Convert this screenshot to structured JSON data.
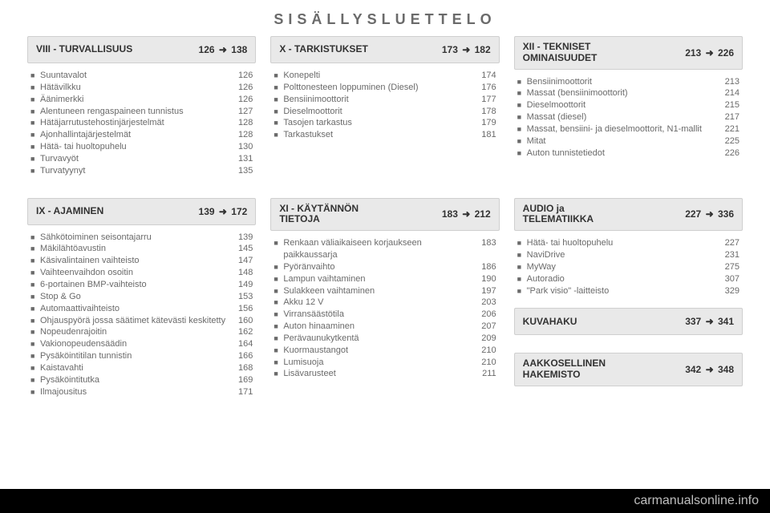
{
  "title": "SISÄLLYSLUETTELO",
  "footer": "carmanualsonline.info",
  "colors": {
    "page_bg": "#ffffff",
    "header_bg": "#e9e9e9",
    "header_border": "#cfcfcf",
    "header_text": "#323232",
    "body_text": "#6a6a6a",
    "footer_bg": "#000000",
    "footer_text": "#bfbfbf"
  },
  "typography": {
    "title_fontsize": 18,
    "title_letterspacing": 6,
    "header_fontsize": 12,
    "item_fontsize": 11
  },
  "arrow_glyph": "➜",
  "bullet_glyph": "■",
  "sections": {
    "s8": {
      "label": "VIII - TURVALLISUUS",
      "range_from": "126",
      "range_to": "138",
      "items": [
        {
          "t": "Suuntavalot",
          "p": "126"
        },
        {
          "t": "Hätävilkku",
          "p": "126"
        },
        {
          "t": "Äänimerkki",
          "p": "126"
        },
        {
          "t": "Alentuneen rengaspaineen tunnistus",
          "p": "127"
        },
        {
          "t": "Hätäjarrutustehostinjärjestelmät",
          "p": "128"
        },
        {
          "t": "Ajonhallintajärjestelmät",
          "p": "128"
        },
        {
          "t": "Hätä- tai huoltopuhelu",
          "p": "130"
        },
        {
          "t": "Turvavyöt",
          "p": "131"
        },
        {
          "t": "Turvatyynyt",
          "p": "135"
        }
      ]
    },
    "s10": {
      "label": "X - TARKISTUKSET",
      "range_from": "173",
      "range_to": "182",
      "items": [
        {
          "t": "Konepelti",
          "p": "174"
        },
        {
          "t": "Polttonesteen loppuminen (Diesel)",
          "p": "176"
        },
        {
          "t": "Bensiinimoottorit",
          "p": "177"
        },
        {
          "t": "Dieselmoottorit",
          "p": "178"
        },
        {
          "t": "Tasojen tarkastus",
          "p": "179"
        },
        {
          "t": "Tarkastukset",
          "p": "181"
        }
      ]
    },
    "s12": {
      "label": "XII - TEKNISET\nOMINAISUUDET",
      "range_from": "213",
      "range_to": "226",
      "items": [
        {
          "t": "Bensiinimoottorit",
          "p": "213"
        },
        {
          "t": "Massat (bensiinimoottorit)",
          "p": "214"
        },
        {
          "t": "Dieselmoottorit",
          "p": "215"
        },
        {
          "t": "Massat (diesel)",
          "p": "217"
        },
        {
          "t": "Massat, bensiini- ja dieselmoottorit, N1-mallit",
          "p": "221"
        },
        {
          "t": "Mitat",
          "p": "225"
        },
        {
          "t": "Auton tunnistetiedot",
          "p": "226"
        }
      ]
    },
    "s9": {
      "label": "IX - AJAMINEN",
      "range_from": "139",
      "range_to": "172",
      "items": [
        {
          "t": "Sähkötoiminen seisontajarru",
          "p": "139"
        },
        {
          "t": "Mäkilähtöavustin",
          "p": "145"
        },
        {
          "t": "Käsivalintainen vaihteisto",
          "p": "147"
        },
        {
          "t": "Vaihteenvaihdon osoitin",
          "p": "148"
        },
        {
          "t": "6-portainen BMP-vaihteisto",
          "p": "149"
        },
        {
          "t": "Stop & Go",
          "p": "153"
        },
        {
          "t": "Automaattivaihteisto",
          "p": "156"
        },
        {
          "t": "Ohjauspyörä jossa säätimet kätevästi keskitetty",
          "p": "160"
        },
        {
          "t": "Nopeudenrajoitin",
          "p": "162"
        },
        {
          "t": "Vakionopeudensäädin",
          "p": "164"
        },
        {
          "t": "Pysäköintitilan tunnistin",
          "p": "166"
        },
        {
          "t": "Kaistavahti",
          "p": "168"
        },
        {
          "t": "Pysäköintitutka",
          "p": "169"
        },
        {
          "t": "Ilmajousitus",
          "p": "171"
        }
      ]
    },
    "s11": {
      "label": "XI - KÄYTÄNNÖN\nTIETOJA",
      "range_from": "183",
      "range_to": "212",
      "items": [
        {
          "t": "Renkaan väliaikaiseen korjaukseen paikkaussarja",
          "p": "183"
        },
        {
          "t": "Pyöränvaihto",
          "p": "186"
        },
        {
          "t": "Lampun vaihtaminen",
          "p": "190"
        },
        {
          "t": "Sulakkeen vaihtaminen",
          "p": "197"
        },
        {
          "t": "Akku 12 V",
          "p": "203"
        },
        {
          "t": "Virransäästötila",
          "p": "206"
        },
        {
          "t": "Auton hinaaminen",
          "p": "207"
        },
        {
          "t": "Perävaunukytkentä",
          "p": "209"
        },
        {
          "t": "Kuormaustangot",
          "p": "210"
        },
        {
          "t": "Lumisuoja",
          "p": "210"
        },
        {
          "t": "Lisävarusteet",
          "p": "211"
        }
      ]
    },
    "audio": {
      "label": "AUDIO ja\nTELEMATIIKKA",
      "range_from": "227",
      "range_to": "336",
      "items": [
        {
          "t": "Hätä- tai huoltopuhelu",
          "p": "227"
        },
        {
          "t": "NaviDrive",
          "p": "231"
        },
        {
          "t": "MyWay",
          "p": "275"
        },
        {
          "t": "Autoradio",
          "p": "307"
        },
        {
          "t": "\"Park visio\" -laitteisto",
          "p": "329"
        }
      ]
    },
    "kuva": {
      "label": "KUVAHAKU",
      "range_from": "337",
      "range_to": "341",
      "items": []
    },
    "aak": {
      "label": "AAKKOSELLINEN\nHAKEMISTO",
      "range_from": "342",
      "range_to": "348",
      "items": []
    }
  }
}
